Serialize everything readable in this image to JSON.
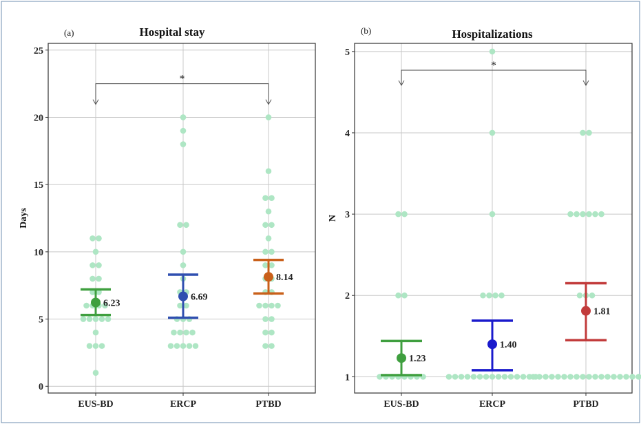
{
  "chart_data": [
    {
      "panel": "(a)",
      "type": "scatter",
      "title": "Hospital stay",
      "xlabel": "",
      "ylabel": "Days",
      "categories": [
        "EUS-BD",
        "ERCP",
        "PTBD"
      ],
      "ylim": [
        -0.5,
        25.5
      ],
      "yticks": [
        "0",
        "5",
        "10",
        "15",
        "20",
        "25"
      ],
      "grid": true,
      "point_color": "#aee6c4",
      "points": [
        [
          1,
          3,
          3,
          3,
          4,
          5,
          5,
          5,
          5,
          5,
          6,
          6,
          6,
          6,
          7,
          7,
          8,
          8,
          9,
          9,
          10,
          11,
          11
        ],
        [
          3,
          3,
          3,
          3,
          3,
          4,
          4,
          4,
          4,
          5,
          5,
          5,
          6,
          6,
          7,
          7,
          8,
          9,
          10,
          12,
          12,
          18,
          19,
          20
        ],
        [
          3,
          3,
          4,
          4,
          5,
          5,
          6,
          6,
          6,
          6,
          7,
          7,
          8,
          8,
          9,
          9,
          10,
          10,
          11,
          12,
          12,
          13,
          14,
          14,
          16,
          20
        ]
      ],
      "series": [
        {
          "name": "EUS-BD",
          "mean": 6.23,
          "ci_low": 5.3,
          "ci_high": 7.2,
          "color": "#3f9f3f",
          "label": "6.23"
        },
        {
          "name": "ERCP",
          "mean": 6.69,
          "ci_low": 5.1,
          "ci_high": 8.3,
          "color": "#2f4fb0",
          "label": "6.69"
        },
        {
          "name": "PTBD",
          "mean": 8.14,
          "ci_low": 6.9,
          "ci_high": 9.4,
          "color": "#c9601a",
          "label": "8.14"
        }
      ],
      "annotation": {
        "text": "*",
        "from": "EUS-BD",
        "to": "PTBD",
        "y": 22.5
      }
    },
    {
      "panel": "(b)",
      "type": "scatter",
      "title": "Hospitalizations",
      "xlabel": "",
      "ylabel": "N",
      "categories": [
        "EUS-BD",
        "ERCP",
        "PTBD"
      ],
      "ylim": [
        0.8,
        5.1
      ],
      "yticks": [
        "1",
        "2",
        "3",
        "4",
        "5"
      ],
      "grid": true,
      "point_color": "#aee6c4",
      "points": [
        [
          1,
          1,
          1,
          1,
          1,
          1,
          1,
          1,
          2,
          2,
          3,
          3
        ],
        [
          1,
          1,
          1,
          1,
          1,
          1,
          1,
          1,
          1,
          1,
          1,
          1,
          1,
          1,
          1,
          2,
          2,
          2,
          2,
          3,
          4,
          5
        ],
        [
          1,
          1,
          1,
          1,
          1,
          1,
          1,
          1,
          1,
          1,
          1,
          1,
          1,
          1,
          1,
          1,
          1,
          1,
          2,
          2,
          2,
          3,
          3,
          3,
          3,
          3,
          3,
          4,
          4
        ]
      ],
      "series": [
        {
          "name": "EUS-BD",
          "mean": 1.23,
          "ci_low": 1.02,
          "ci_high": 1.44,
          "color": "#3f9f3f",
          "label": "1.23"
        },
        {
          "name": "ERCP",
          "mean": 1.4,
          "ci_low": 1.08,
          "ci_high": 1.69,
          "color": "#1a1acc",
          "label": "1.40"
        },
        {
          "name": "PTBD",
          "mean": 1.81,
          "ci_low": 1.45,
          "ci_high": 2.15,
          "color": "#c23b3b",
          "label": "1.81"
        }
      ],
      "annotation": {
        "text": "*",
        "from": "EUS-BD",
        "to": "PTBD",
        "y": 4.77
      }
    }
  ]
}
